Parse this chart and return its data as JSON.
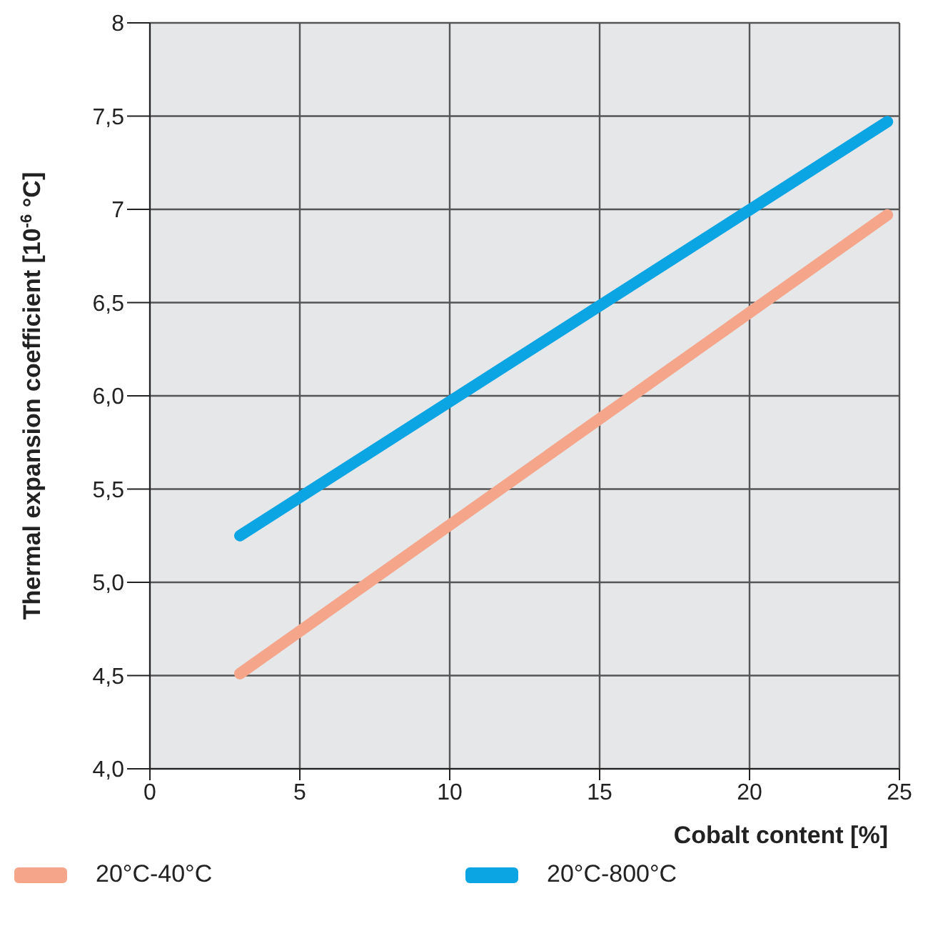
{
  "chart_data": {
    "type": "line",
    "xlabel": "Cobalt content [%]",
    "ylabel": "Thermal expansion coefficient [10$^{-6}$ °C]",
    "x": [
      3,
      24.6
    ],
    "series": [
      {
        "name": "20°C-40°C",
        "color": "#f4a58a",
        "values": [
          4.51,
          6.97
        ]
      },
      {
        "name": "20°C-800°C",
        "color": "#0ba5e3",
        "values": [
          5.25,
          7.47
        ]
      }
    ],
    "xlim": [
      0,
      25
    ],
    "xticks": [
      0,
      5,
      10,
      15,
      20,
      25
    ],
    "ylim": [
      4,
      8
    ],
    "yticks": [
      {
        "value": 4,
        "label": "4,0"
      },
      {
        "value": 4.5,
        "label": "4,5"
      },
      {
        "value": 5,
        "label": "5,0"
      },
      {
        "value": 5.5,
        "label": "5,5"
      },
      {
        "value": 6,
        "label": "6,0"
      },
      {
        "value": 6.5,
        "label": "6,5"
      },
      7,
      {
        "value": 7.5,
        "label": "7,5"
      },
      8
    ],
    "grid": true,
    "legend": "bottom",
    "marker": "none",
    "line_style": "solid"
  }
}
